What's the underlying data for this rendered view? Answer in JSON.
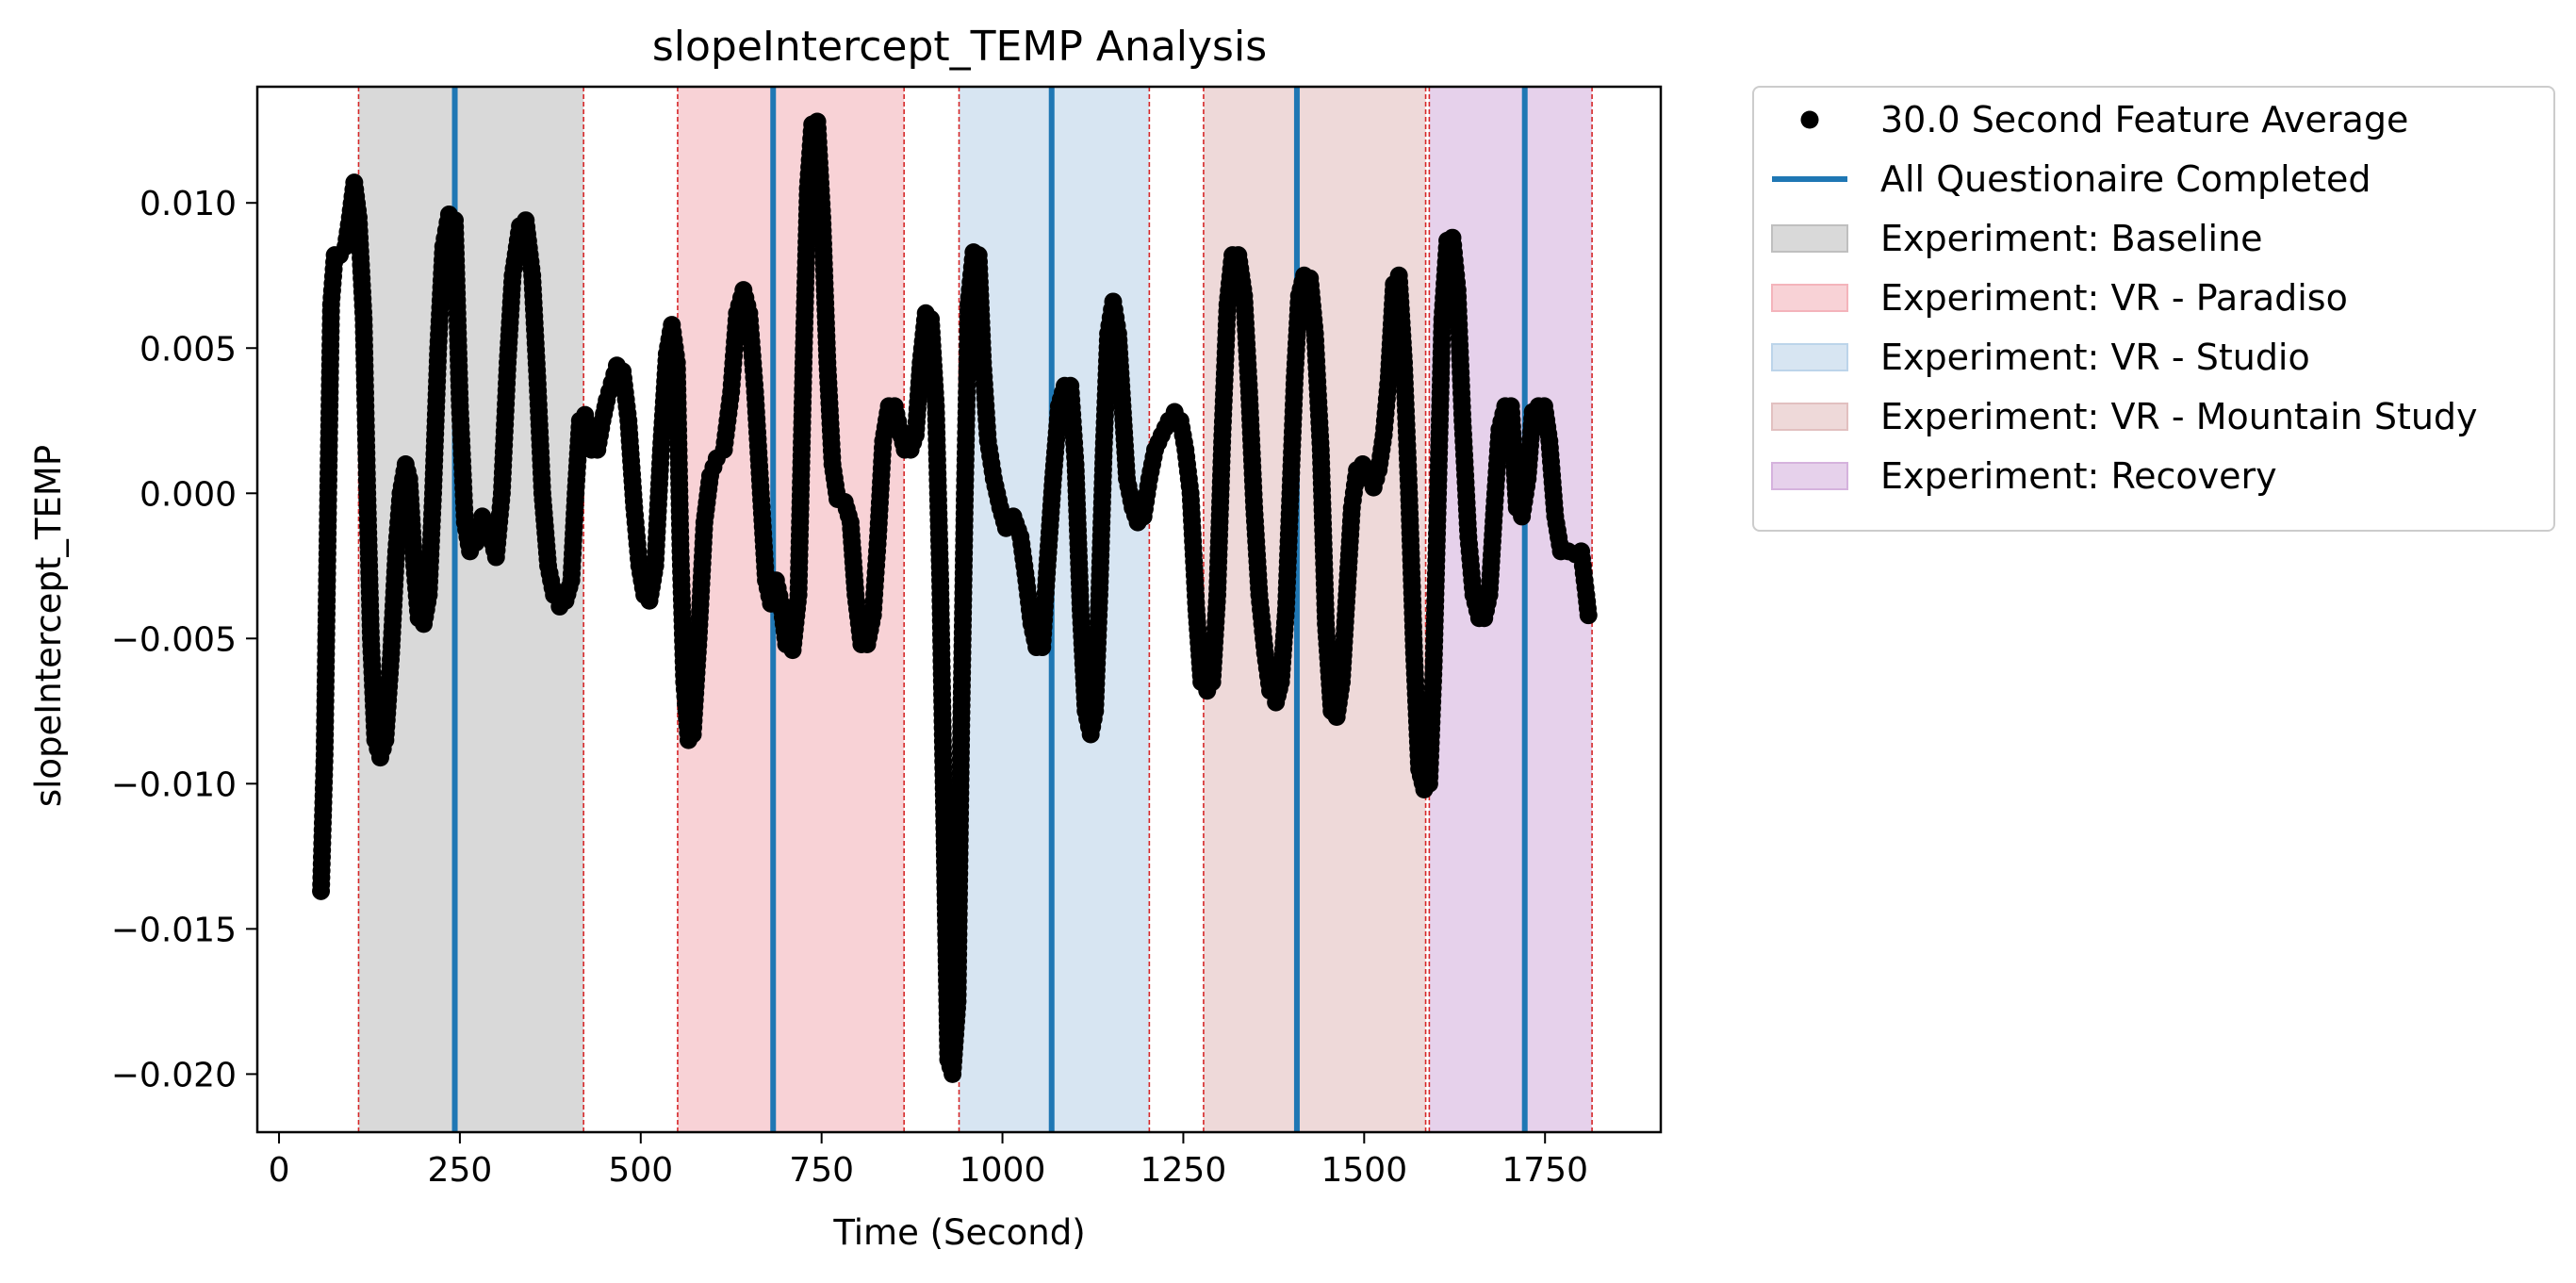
{
  "chart_data": {
    "type": "scatter",
    "title": "slopeIntercept_TEMP Analysis",
    "xlabel": "Time (Second)",
    "ylabel": "slopeIntercept_TEMP",
    "xlim": [
      -30,
      1910
    ],
    "ylim": [
      -0.022,
      0.014
    ],
    "xticks": [
      0,
      250,
      500,
      750,
      1000,
      1250,
      1500,
      1750
    ],
    "xtick_labels": [
      "0",
      "250",
      "500",
      "750",
      "1000",
      "1250",
      "1500",
      "1750"
    ],
    "yticks": [
      0.01,
      0.005,
      0.0,
      -0.005,
      -0.01,
      -0.015,
      -0.02
    ],
    "ytick_labels": [
      "0.010",
      "0.005",
      "0.000",
      "−0.005",
      "−0.010",
      "−0.015",
      "−0.020"
    ],
    "grid": false,
    "legend_position": "outside-right-top",
    "series": [
      {
        "name": "30.0 Second Feature Average",
        "kind": "points",
        "color": "#000000",
        "keypoints": [
          [
            58,
            -0.0137
          ],
          [
            63,
            -0.009
          ],
          [
            68,
            0.0
          ],
          [
            72,
            0.0065
          ],
          [
            77,
            0.0082
          ],
          [
            84,
            0.0082
          ],
          [
            92,
            0.0085
          ],
          [
            98,
            0.0095
          ],
          [
            104,
            0.0107
          ],
          [
            110,
            0.0095
          ],
          [
            117,
            0.006
          ],
          [
            122,
            0.0
          ],
          [
            127,
            -0.005
          ],
          [
            133,
            -0.0085
          ],
          [
            140,
            -0.0091
          ],
          [
            147,
            -0.0085
          ],
          [
            155,
            -0.0055
          ],
          [
            162,
            -0.002
          ],
          [
            168,
            0.0
          ],
          [
            175,
            0.001
          ],
          [
            180,
            0.0005
          ],
          [
            187,
            -0.0025
          ],
          [
            193,
            -0.0043
          ],
          [
            200,
            -0.0045
          ],
          [
            207,
            -0.0035
          ],
          [
            213,
            0.0
          ],
          [
            220,
            0.005
          ],
          [
            227,
            0.0085
          ],
          [
            235,
            0.0096
          ],
          [
            243,
            0.0094
          ],
          [
            250,
            0.003
          ],
          [
            257,
            -0.001
          ],
          [
            264,
            -0.002
          ],
          [
            272,
            -0.0017
          ],
          [
            281,
            -0.0008
          ],
          [
            290,
            -0.0012
          ],
          [
            300,
            -0.0022
          ],
          [
            308,
            0.0
          ],
          [
            316,
            0.0045
          ],
          [
            323,
            0.0075
          ],
          [
            333,
            0.0092
          ],
          [
            341,
            0.0094
          ],
          [
            350,
            0.0075
          ],
          [
            357,
            0.004
          ],
          [
            364,
            0.0
          ],
          [
            372,
            -0.0025
          ],
          [
            380,
            -0.0035
          ],
          [
            388,
            -0.0039
          ],
          [
            396,
            -0.0037
          ],
          [
            404,
            -0.003
          ],
          [
            410,
            0.0
          ],
          [
            416,
            0.0025
          ],
          [
            423,
            0.0027
          ],
          [
            432,
            0.0015
          ],
          [
            440,
            0.0015
          ],
          [
            447,
            0.0025
          ],
          [
            453,
            0.0032
          ],
          [
            460,
            0.0038
          ],
          [
            467,
            0.0044
          ],
          [
            475,
            0.0042
          ],
          [
            483,
            0.0025
          ],
          [
            491,
            -0.0005
          ],
          [
            498,
            -0.0025
          ],
          [
            505,
            -0.0035
          ],
          [
            512,
            -0.0037
          ],
          [
            520,
            -0.0025
          ],
          [
            528,
            0.0015
          ],
          [
            536,
            0.0048
          ],
          [
            543,
            0.0058
          ],
          [
            550,
            0.0045
          ],
          [
            555,
            -0.002
          ],
          [
            560,
            -0.0065
          ],
          [
            566,
            -0.0085
          ],
          [
            572,
            -0.0083
          ],
          [
            580,
            -0.005
          ],
          [
            588,
            -0.001
          ],
          [
            596,
            0.0006
          ],
          [
            605,
            0.0012
          ],
          [
            615,
            0.0015
          ],
          [
            625,
            0.0035
          ],
          [
            633,
            0.0062
          ],
          [
            642,
            0.007
          ],
          [
            650,
            0.0062
          ],
          [
            658,
            0.0035
          ],
          [
            666,
            0.0
          ],
          [
            673,
            -0.003
          ],
          [
            680,
            -0.0038
          ],
          [
            687,
            -0.003
          ],
          [
            694,
            -0.0038
          ],
          [
            701,
            -0.0052
          ],
          [
            710,
            -0.0054
          ],
          [
            718,
            -0.0035
          ],
          [
            725,
            0.0045
          ],
          [
            731,
            0.0105
          ],
          [
            737,
            0.0127
          ],
          [
            744,
            0.0128
          ],
          [
            751,
            0.0095
          ],
          [
            758,
            0.0045
          ],
          [
            765,
            0.001
          ],
          [
            772,
            -0.0002
          ],
          [
            782,
            -0.0003
          ],
          [
            790,
            -0.001
          ],
          [
            797,
            -0.0035
          ],
          [
            805,
            -0.0052
          ],
          [
            813,
            -0.0052
          ],
          [
            821,
            -0.0042
          ],
          [
            828,
            -0.0015
          ],
          [
            835,
            0.0018
          ],
          [
            843,
            0.003
          ],
          [
            851,
            0.003
          ],
          [
            858,
            0.0022
          ],
          [
            865,
            0.0015
          ],
          [
            873,
            0.0015
          ],
          [
            880,
            0.002
          ],
          [
            887,
            0.0045
          ],
          [
            894,
            0.0062
          ],
          [
            901,
            0.006
          ],
          [
            908,
            0.003
          ],
          [
            914,
            -0.003
          ],
          [
            920,
            -0.012
          ],
          [
            925,
            -0.0195
          ],
          [
            931,
            -0.02
          ],
          [
            938,
            -0.0175
          ],
          [
            943,
            -0.008
          ],
          [
            948,
            0.0
          ],
          [
            953,
            0.0065
          ],
          [
            960,
            0.0083
          ],
          [
            967,
            0.0082
          ],
          [
            973,
            0.0045
          ],
          [
            980,
            0.0018
          ],
          [
            988,
            0.0005
          ],
          [
            997,
            -0.0005
          ],
          [
            1005,
            -0.0012
          ],
          [
            1015,
            -0.0008
          ],
          [
            1025,
            -0.0015
          ],
          [
            1033,
            -0.003
          ],
          [
            1040,
            -0.0045
          ],
          [
            1047,
            -0.0053
          ],
          [
            1055,
            -0.0053
          ],
          [
            1062,
            -0.0025
          ],
          [
            1070,
            0.0005
          ],
          [
            1078,
            0.003
          ],
          [
            1086,
            0.0037
          ],
          [
            1094,
            0.0037
          ],
          [
            1101,
            0.001
          ],
          [
            1108,
            -0.004
          ],
          [
            1115,
            -0.0075
          ],
          [
            1122,
            -0.0083
          ],
          [
            1128,
            -0.0075
          ],
          [
            1134,
            -0.0035
          ],
          [
            1140,
            0.0015
          ],
          [
            1146,
            0.0055
          ],
          [
            1153,
            0.0066
          ],
          [
            1160,
            0.0055
          ],
          [
            1166,
            0.003
          ],
          [
            1172,
            0.0005
          ],
          [
            1180,
            -0.0005
          ],
          [
            1187,
            -0.001
          ],
          [
            1195,
            -0.0008
          ],
          [
            1203,
            0.0005
          ],
          [
            1211,
            0.0015
          ],
          [
            1220,
            0.002
          ],
          [
            1230,
            0.0025
          ],
          [
            1238,
            0.0028
          ],
          [
            1246,
            0.0025
          ],
          [
            1253,
            0.0015
          ],
          [
            1260,
            0.0
          ],
          [
            1268,
            -0.004
          ],
          [
            1275,
            -0.0065
          ],
          [
            1283,
            -0.0068
          ],
          [
            1290,
            -0.0065
          ],
          [
            1297,
            -0.0035
          ],
          [
            1304,
            0.002
          ],
          [
            1311,
            0.0065
          ],
          [
            1318,
            0.0082
          ],
          [
            1326,
            0.0082
          ],
          [
            1334,
            0.0068
          ],
          [
            1341,
            0.0035
          ],
          [
            1348,
            -0.0005
          ],
          [
            1355,
            -0.0035
          ],
          [
            1363,
            -0.0055
          ],
          [
            1370,
            -0.0068
          ],
          [
            1378,
            -0.0072
          ],
          [
            1385,
            -0.0065
          ],
          [
            1392,
            -0.004
          ],
          [
            1398,
            0.0
          ],
          [
            1404,
            0.004
          ],
          [
            1410,
            0.0068
          ],
          [
            1417,
            0.0075
          ],
          [
            1425,
            0.0074
          ],
          [
            1432,
            0.0055
          ],
          [
            1440,
            0.0015
          ],
          [
            1447,
            -0.0045
          ],
          [
            1455,
            -0.0075
          ],
          [
            1462,
            -0.0077
          ],
          [
            1469,
            -0.0065
          ],
          [
            1476,
            -0.0035
          ],
          [
            1483,
            -0.0005
          ],
          [
            1490,
            0.0008
          ],
          [
            1498,
            0.001
          ],
          [
            1506,
            0.0005
          ],
          [
            1513,
            0.0002
          ],
          [
            1520,
            0.0008
          ],
          [
            1527,
            0.002
          ],
          [
            1534,
            0.004
          ],
          [
            1541,
            0.0072
          ],
          [
            1548,
            0.0075
          ],
          [
            1555,
            0.0045
          ],
          [
            1562,
            0.0
          ],
          [
            1569,
            -0.0055
          ],
          [
            1576,
            -0.0095
          ],
          [
            1583,
            -0.0102
          ],
          [
            1590,
            -0.01
          ],
          [
            1596,
            -0.006
          ],
          [
            1602,
            0.0
          ],
          [
            1608,
            0.006
          ],
          [
            1615,
            0.0087
          ],
          [
            1622,
            0.0088
          ],
          [
            1629,
            0.007
          ],
          [
            1636,
            0.0025
          ],
          [
            1644,
            -0.0015
          ],
          [
            1651,
            -0.0035
          ],
          [
            1659,
            -0.0043
          ],
          [
            1666,
            -0.0043
          ],
          [
            1673,
            -0.0035
          ],
          [
            1680,
            -0.0005
          ],
          [
            1687,
            0.0022
          ],
          [
            1695,
            0.003
          ],
          [
            1703,
            0.003
          ],
          [
            1711,
            -0.0005
          ],
          [
            1718,
            -0.0008
          ],
          [
            1726,
            0.0005
          ],
          [
            1733,
            0.0028
          ],
          [
            1741,
            0.003
          ],
          [
            1749,
            0.003
          ],
          [
            1756,
            0.0018
          ],
          [
            1764,
            -0.0008
          ],
          [
            1772,
            -0.002
          ],
          [
            1782,
            -0.002
          ],
          [
            1792,
            -0.0021
          ],
          [
            1800,
            -0.002
          ],
          [
            1807,
            -0.0035
          ],
          [
            1810,
            -0.0042
          ]
        ]
      },
      {
        "name": "All Questionaire Completed",
        "kind": "vlines",
        "color": "#1f77b4",
        "x": [
          243,
          683,
          1068,
          1407,
          1722
        ]
      }
    ],
    "regions": [
      {
        "name": "Experiment: Baseline",
        "x0": 110,
        "x1": 421,
        "color": "#bfbfbf"
      },
      {
        "name": "Experiment: VR - Paradiso",
        "x0": 551,
        "x1": 864,
        "color": "#f4b4bb"
      },
      {
        "name": "Experiment: VR - Studio",
        "x0": 940,
        "x1": 1203,
        "color": "#bcd4ea"
      },
      {
        "name": "Experiment: VR - Mountain Study",
        "x0": 1278,
        "x1": 1585,
        "color": "#e2c0c0"
      },
      {
        "name": "Experiment: Recovery",
        "x0": 1590,
        "x1": 1815,
        "color": "#d5b2dd"
      }
    ],
    "boundary_line_color": "#d62728"
  }
}
